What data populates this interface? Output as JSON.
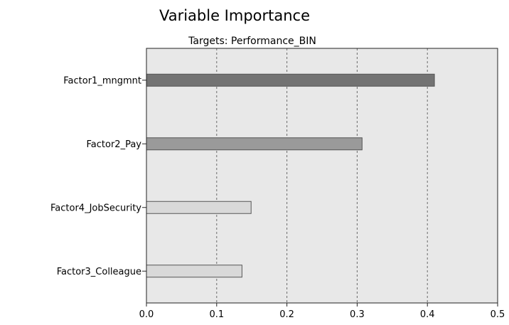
{
  "chart_data": {
    "type": "bar",
    "orientation": "horizontal",
    "title": "Variable Importance",
    "subtitle": "Targets: Performance_BIN",
    "xlabel": "",
    "ylabel": "",
    "categories": [
      "Factor1_mngmnt",
      "Factor2_Pay",
      "Factor4_JobSecurity",
      "Factor3_Colleague"
    ],
    "values": [
      0.41,
      0.307,
      0.149,
      0.136
    ],
    "bar_colors": [
      "#737373",
      "#9a9a9a",
      "#d9d9d9",
      "#d9d9d9"
    ],
    "xlim": [
      0,
      0.5
    ],
    "xticks": [
      "0.0",
      "0.1",
      "0.2",
      "0.3",
      "0.4",
      "0.5"
    ],
    "grid": "vertical-dotted",
    "plot_background": "#e8e8e8"
  }
}
